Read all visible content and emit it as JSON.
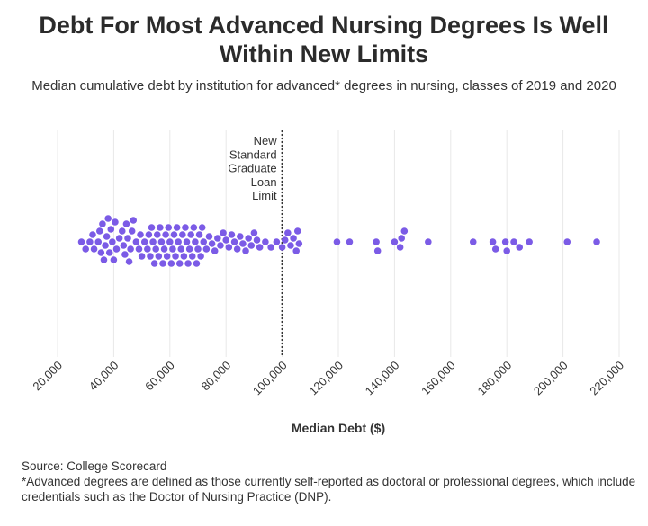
{
  "title": "Debt For Most Advanced Nursing Degrees Is Well Within New Limits",
  "subtitle": "Median cumulative debt by institution for advanced* degrees in nursing, classes of 2019 and 2020",
  "source": "Source: College Scorecard",
  "footnote": "*Advanced degrees are defined as those currently self-reported as doctoral or professional degrees, which include credentials such as the Doctor of Nursing Practice (DNP).",
  "colors": {
    "point": "#7b5be6",
    "reference": "#333333",
    "grid": "#e8e8e8"
  },
  "chart_data": {
    "type": "scatter",
    "subtype": "beeswarm",
    "title": "Debt For Most Advanced Nursing Degrees Is Well Within New Limits",
    "subtitle": "Median cumulative debt by institution for advanced* degrees in nursing, classes of 2019 and 2020",
    "xlabel": "Median Debt ($)",
    "ylabel": "",
    "xlim": [
      20000,
      220000
    ],
    "xticks": [
      20000,
      40000,
      60000,
      80000,
      100000,
      120000,
      140000,
      160000,
      180000,
      200000,
      220000
    ],
    "xtick_labels": [
      "20,000",
      "40,000",
      "60,000",
      "80,000",
      "100,000",
      "120,000",
      "140,000",
      "160,000",
      "180,000",
      "200,000",
      "220,000"
    ],
    "grid": true,
    "reference_line": {
      "value": 100000,
      "label_lines": [
        "New",
        "Standard",
        "Graduate",
        "Loan",
        "Limit"
      ]
    },
    "values": [
      28500,
      30000,
      31500,
      32500,
      33000,
      34500,
      35000,
      35500,
      36000,
      36500,
      37000,
      37500,
      38000,
      38500,
      39000,
      39500,
      40000,
      40500,
      41000,
      42000,
      43000,
      43500,
      44000,
      44500,
      45000,
      45500,
      46000,
      46500,
      47000,
      48000,
      49000,
      49500,
      50000,
      51000,
      52000,
      52500,
      53000,
      53500,
      54000,
      54500,
      55000,
      55500,
      56000,
      56500,
      57000,
      57500,
      58000,
      58500,
      59000,
      59500,
      60000,
      60500,
      61000,
      61500,
      62000,
      62500,
      63000,
      63500,
      64000,
      64500,
      65000,
      65500,
      66000,
      66500,
      67000,
      67500,
      68000,
      68500,
      69000,
      69500,
      70000,
      70500,
      71000,
      71500,
      72000,
      73000,
      74000,
      75000,
      76000,
      77000,
      78000,
      79000,
      80000,
      81000,
      82000,
      83000,
      84000,
      85000,
      86000,
      87000,
      88000,
      89000,
      90000,
      91000,
      92000,
      94000,
      96000,
      98000,
      100000,
      101000,
      102000,
      103000,
      104000,
      105000,
      105500,
      106000,
      119500,
      124000,
      133500,
      134000,
      140000,
      142000,
      142500,
      143500,
      152000,
      168000,
      175000,
      176000,
      179500,
      180000,
      182500,
      184500,
      188000,
      201500,
      212000
    ]
  }
}
